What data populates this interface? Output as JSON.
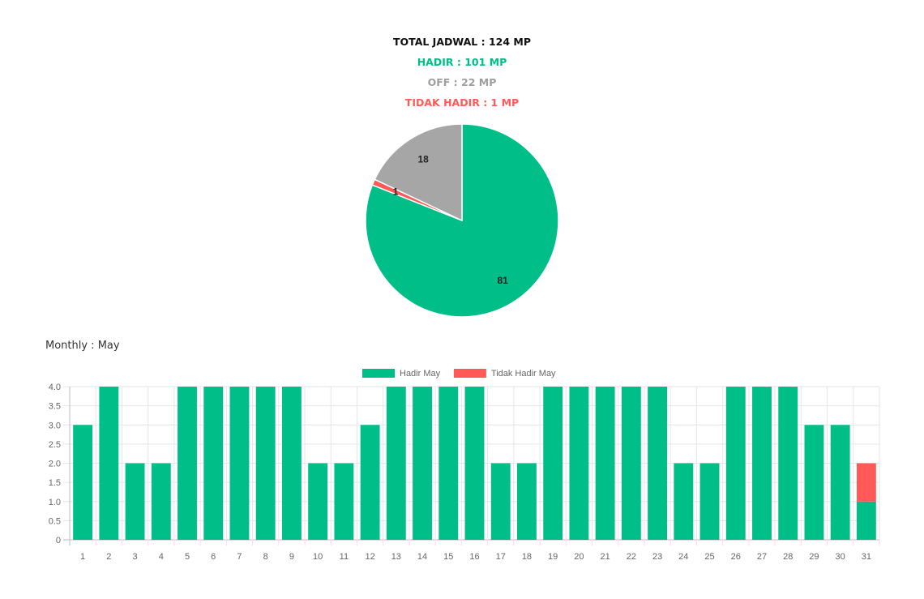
{
  "summary": {
    "total": "TOTAL JADWAL : 124 MP",
    "hadir": "HADIR : 101 MP",
    "off": "OFF : 22 MP",
    "tidak_hadir": "TIDAK HADIR : 1 MP"
  },
  "monthly": {
    "title": "Monthly : May"
  },
  "colors": {
    "hadir": "#00be87",
    "off": "#a6a6a6",
    "tidak_hadir": "#ff5a57"
  },
  "chart_data": [
    {
      "type": "pie",
      "labels": [
        "",
        "",
        ""
      ],
      "slices": [
        {
          "key": "hadir",
          "value": 81,
          "label": "81"
        },
        {
          "key": "tidak_hadir",
          "value": 1,
          "label": "1"
        },
        {
          "key": "off",
          "value": 18,
          "label": "18"
        }
      ]
    },
    {
      "type": "bar",
      "stacked": true,
      "legend_position": "top",
      "grid": true,
      "ylim": [
        0,
        4
      ],
      "yticks": [
        "0",
        "0.5",
        "1.0",
        "1.5",
        "2.0",
        "2.5",
        "3.0",
        "3.5",
        "4.0"
      ],
      "categories": [
        "1",
        "2",
        "3",
        "4",
        "5",
        "6",
        "7",
        "8",
        "9",
        "10",
        "11",
        "12",
        "13",
        "14",
        "15",
        "16",
        "17",
        "18",
        "19",
        "20",
        "21",
        "22",
        "23",
        "24",
        "25",
        "26",
        "27",
        "28",
        "29",
        "30",
        "31"
      ],
      "series": [
        {
          "name": "Hadir May",
          "color": "#00be87",
          "values": [
            3,
            4,
            2,
            2,
            4,
            4,
            4,
            4,
            4,
            2,
            2,
            3,
            4,
            4,
            4,
            4,
            2,
            2,
            4,
            4,
            4,
            4,
            4,
            2,
            2,
            4,
            4,
            4,
            3,
            3,
            1
          ]
        },
        {
          "name": "Tidak Hadir May",
          "color": "#ff5a57",
          "values": [
            0,
            0,
            0,
            0,
            0,
            0,
            0,
            0,
            0,
            0,
            0,
            0,
            0,
            0,
            0,
            0,
            0,
            0,
            0,
            0,
            0,
            0,
            0,
            0,
            0,
            0,
            0,
            0,
            0,
            0,
            1
          ]
        }
      ]
    }
  ]
}
